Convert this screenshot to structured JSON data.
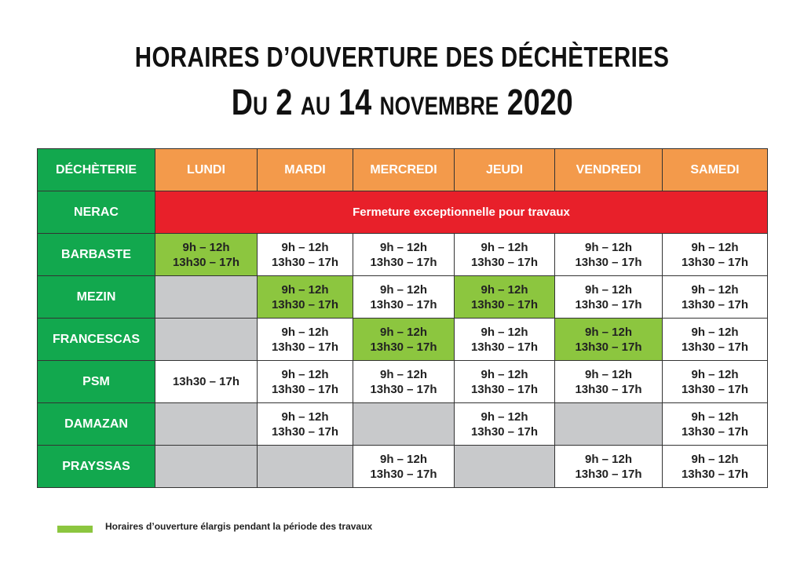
{
  "title": {
    "line1": "HORAIRES D’OUVERTURE DES DÉCHÈTERIES",
    "line2": "Du 2 au 14 novembre 2020"
  },
  "colors": {
    "header_green": "#12a84e",
    "day_orange": "#f39a4b",
    "closed_red": "#e8202a",
    "extended_green": "#8cc63f",
    "closed_gray": "#c8c9cb"
  },
  "table": {
    "corner": "DÉCHÈTERIE",
    "days": [
      "LUNDI",
      "MARDI",
      "MERCREDI",
      "JEUDI",
      "VENDREDI",
      "SAMEDI"
    ],
    "nerac": {
      "name": "NERAC",
      "notice": "Fermeture exceptionnelle pour travaux"
    },
    "rows": [
      {
        "name": "BARBASTE",
        "cells": [
          {
            "style": "green",
            "l1": "9h – 12h",
            "l2": "13h30 – 17h"
          },
          {
            "style": "white",
            "l1": "9h – 12h",
            "l2": "13h30 – 17h"
          },
          {
            "style": "white",
            "l1": "9h – 12h",
            "l2": "13h30 – 17h"
          },
          {
            "style": "white",
            "l1": "9h – 12h",
            "l2": "13h30 – 17h"
          },
          {
            "style": "white",
            "l1": "9h – 12h",
            "l2": "13h30 – 17h"
          },
          {
            "style": "white",
            "l1": "9h – 12h",
            "l2": "13h30 – 17h"
          }
        ]
      },
      {
        "name": "MEZIN",
        "cells": [
          {
            "style": "gray"
          },
          {
            "style": "green",
            "l1": "9h – 12h",
            "l2": "13h30 – 17h"
          },
          {
            "style": "white",
            "l1": "9h – 12h",
            "l2": "13h30 – 17h"
          },
          {
            "style": "green",
            "l1": "9h – 12h",
            "l2": "13h30 – 17h"
          },
          {
            "style": "white",
            "l1": "9h – 12h",
            "l2": "13h30 – 17h"
          },
          {
            "style": "white",
            "l1": "9h – 12h",
            "l2": "13h30 – 17h"
          }
        ]
      },
      {
        "name": "FRANCESCAS",
        "cells": [
          {
            "style": "gray"
          },
          {
            "style": "white",
            "l1": "9h – 12h",
            "l2": "13h30 – 17h"
          },
          {
            "style": "green",
            "l1": "9h – 12h",
            "l2": "13h30 – 17h"
          },
          {
            "style": "white",
            "l1": "9h – 12h",
            "l2": "13h30 – 17h"
          },
          {
            "style": "green",
            "l1": "9h – 12h",
            "l2": "13h30 – 17h"
          },
          {
            "style": "white",
            "l1": "9h – 12h",
            "l2": "13h30 – 17h"
          }
        ]
      },
      {
        "name": "PSM",
        "cells": [
          {
            "style": "white",
            "l1": "13h30 – 17h"
          },
          {
            "style": "white",
            "l1": "9h – 12h",
            "l2": "13h30 – 17h"
          },
          {
            "style": "white",
            "l1": "9h – 12h",
            "l2": "13h30 – 17h"
          },
          {
            "style": "white",
            "l1": "9h – 12h",
            "l2": "13h30 – 17h"
          },
          {
            "style": "white",
            "l1": "9h – 12h",
            "l2": "13h30 – 17h"
          },
          {
            "style": "white",
            "l1": "9h – 12h",
            "l2": "13h30 – 17h"
          }
        ]
      },
      {
        "name": "DAMAZAN",
        "cells": [
          {
            "style": "gray"
          },
          {
            "style": "white",
            "l1": "9h – 12h",
            "l2": "13h30 – 17h"
          },
          {
            "style": "gray"
          },
          {
            "style": "white",
            "l1": "9h – 12h",
            "l2": "13h30 – 17h"
          },
          {
            "style": "gray"
          },
          {
            "style": "white",
            "l1": "9h – 12h",
            "l2": "13h30 – 17h"
          }
        ]
      },
      {
        "name": "PRAYSSAS",
        "cells": [
          {
            "style": "gray"
          },
          {
            "style": "gray"
          },
          {
            "style": "white",
            "l1": "9h – 12h",
            "l2": "13h30 – 17h"
          },
          {
            "style": "gray"
          },
          {
            "style": "white",
            "l1": "9h – 12h",
            "l2": "13h30 – 17h"
          },
          {
            "style": "white",
            "l1": "9h – 12h",
            "l2": "13h30 – 17h"
          }
        ]
      }
    ]
  },
  "legend": {
    "text": "Horaires d’ouverture élargis pendant la période des travaux"
  }
}
